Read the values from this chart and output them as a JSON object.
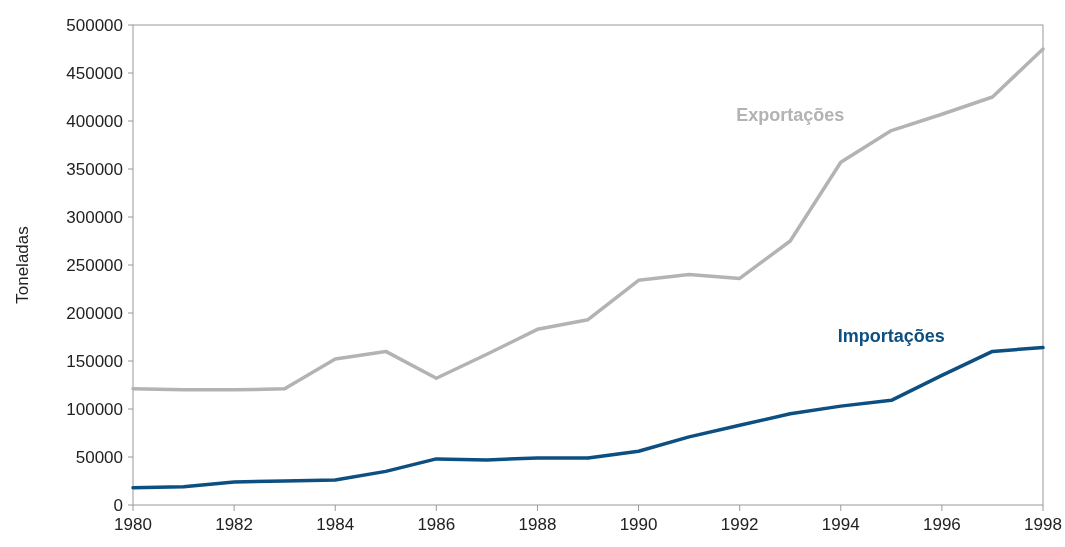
{
  "chart_data": {
    "type": "line",
    "ylabel": "Toneladas",
    "x": [
      1980,
      1981,
      1982,
      1983,
      1984,
      1985,
      1986,
      1987,
      1988,
      1989,
      1990,
      1991,
      1992,
      1993,
      1994,
      1995,
      1996,
      1997,
      1998
    ],
    "xlim": [
      1980,
      1998
    ],
    "xticks": [
      1980,
      1982,
      1984,
      1986,
      1988,
      1990,
      1992,
      1994,
      1996,
      1998
    ],
    "ylim": [
      0,
      500000
    ],
    "yticks": [
      0,
      50000,
      100000,
      150000,
      200000,
      250000,
      300000,
      350000,
      400000,
      450000,
      500000
    ],
    "grid": false,
    "legend": false,
    "marker": "none",
    "line_style": "solid",
    "series": [
      {
        "name": "Exportações",
        "color": "#b3b3b3",
        "values": [
          121000,
          120000,
          120000,
          121000,
          152000,
          160000,
          132000,
          157000,
          183000,
          193000,
          234000,
          240000,
          236000,
          275000,
          357000,
          390000,
          407000,
          425000,
          475000
        ]
      },
      {
        "name": "Importações",
        "color": "#0d4f80",
        "values": [
          18000,
          19000,
          24000,
          25000,
          26000,
          35000,
          48000,
          47000,
          49000,
          49000,
          56000,
          71000,
          83000,
          95000,
          103000,
          109000,
          135000,
          160000,
          164000
        ]
      }
    ]
  }
}
